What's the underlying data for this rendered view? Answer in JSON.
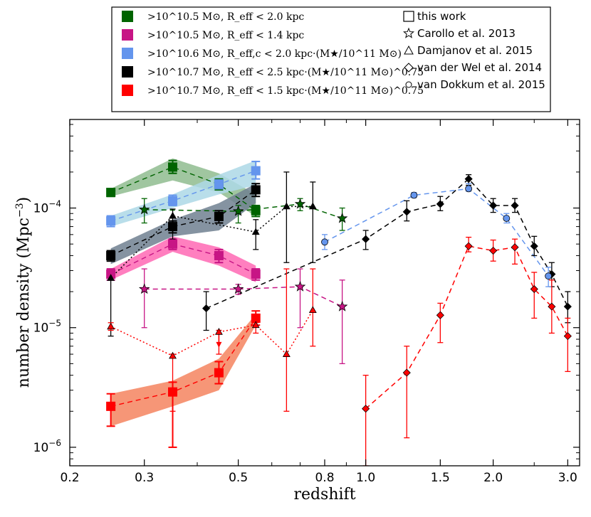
{
  "chart_data": {
    "type": "scatter",
    "xlabel": "redshift",
    "ylabel": "number density (Mpc⁻³)",
    "xscale": "log",
    "yscale": "log",
    "xlim": [
      0.2,
      3.2
    ],
    "ylim": [
      7e-07,
      0.00055
    ],
    "xticks": [
      0.2,
      0.3,
      0.5,
      0.8,
      1.0,
      1.5,
      2.0,
      3.0
    ],
    "xtick_labels": [
      "0.2",
      "0.3",
      "0.5",
      "0.8",
      "1.0",
      "1.5",
      "2.0",
      "3.0"
    ],
    "yticks": [
      1e-06,
      1e-05,
      0.0001
    ],
    "ytick_labels": [
      {
        "base": "10",
        "exp": "−6"
      },
      {
        "base": "10",
        "exp": "−5"
      },
      {
        "base": "10",
        "exp": "−4"
      }
    ],
    "colors": {
      "green": "#006400",
      "magenta": "#c71585",
      "blue": "#6495ed",
      "black": "#000000",
      "red": "#ff0000",
      "green_band": "#8fbc8f",
      "magenta_band": "#ff69b4",
      "blue_band": "#add8e6",
      "black_band": "#708090",
      "red_band": "#f4845f"
    },
    "legend_colors": [
      {
        "color": "#006400",
        "text": ">10^10.5 M⊙, R_eff < 2.0 kpc"
      },
      {
        "color": "#c71585",
        "text": ">10^10.5 M⊙, R_eff < 1.4 kpc"
      },
      {
        "color": "#6495ed",
        "text": ">10^10.6 M⊙, R_eff,c < 2.0 kpc·(M★/10^11 M⊙)"
      },
      {
        "color": "#000000",
        "text": ">10^10.7 M⊙, R_eff < 2.5 kpc·(M★/10^11 M⊙)^0.75"
      },
      {
        "color": "#ff0000",
        "text": ">10^10.7 M⊙, R_eff < 1.5 kpc·(M★/10^11 M⊙)^0.75"
      }
    ],
    "legend_markers": [
      {
        "marker": "square",
        "label": "this work"
      },
      {
        "marker": "star",
        "label": "Carollo et al. 2013"
      },
      {
        "marker": "triangle",
        "label": "Damjanov et al. 2015"
      },
      {
        "marker": "diamond",
        "label": "van der Wel et al. 2014"
      },
      {
        "marker": "circle",
        "label": "van Dokkum et al. 2015"
      }
    ],
    "series": [
      {
        "name": "this work - green",
        "marker": "square",
        "color": "green",
        "band": "green_band",
        "x": [
          0.25,
          0.35,
          0.45,
          0.55
        ],
        "y": [
          0.000135,
          0.00022,
          0.000158,
          9.5e-05
        ],
        "ylo": [
          0.000125,
          0.000195,
          0.000142,
          8.5e-05
        ],
        "yhi": [
          0.000145,
          0.00025,
          0.000175,
          0.000105
        ],
        "band_lo": [
          0.000125,
          0.00017,
          0.000135,
          8.5e-05
        ],
        "band_hi": [
          0.000145,
          0.00026,
          0.000195,
          0.00013
        ]
      },
      {
        "name": "this work - magenta",
        "marker": "square",
        "color": "magenta",
        "band": "magenta_band",
        "x": [
          0.25,
          0.35,
          0.45,
          0.55
        ],
        "y": [
          2.8e-05,
          5e-05,
          4e-05,
          2.8e-05
        ],
        "ylo": [
          2.5e-05,
          4.5e-05,
          3.5e-05,
          2.5e-05
        ],
        "yhi": [
          3.1e-05,
          5.5e-05,
          4.5e-05,
          3.1e-05
        ],
        "band_lo": [
          2.5e-05,
          4.3e-05,
          3.3e-05,
          2.4e-05
        ],
        "band_hi": [
          3.1e-05,
          5.8e-05,
          4.7e-05,
          3.3e-05
        ]
      },
      {
        "name": "this work - blue",
        "marker": "square",
        "color": "blue",
        "band": "blue_band",
        "x": [
          0.25,
          0.35,
          0.45,
          0.55
        ],
        "y": [
          7.8e-05,
          0.000115,
          0.000158,
          0.000205
        ],
        "ylo": [
          7e-05,
          0.000105,
          0.000145,
          0.000175
        ],
        "yhi": [
          8.6e-05,
          0.000128,
          0.000172,
          0.000245
        ],
        "band_lo": [
          7e-05,
          0.0001,
          0.00013,
          0.000155
        ],
        "band_hi": [
          8.6e-05,
          0.00013,
          0.00019,
          0.00025
        ]
      },
      {
        "name": "this work - black",
        "marker": "square",
        "color": "black",
        "band": "black_band",
        "x": [
          0.25,
          0.35,
          0.45,
          0.55
        ],
        "y": [
          4e-05,
          7e-05,
          8.5e-05,
          0.000142
        ],
        "ylo": [
          3.6e-05,
          6.2e-05,
          7.5e-05,
          0.000125
        ],
        "yhi": [
          4.4e-05,
          7.8e-05,
          9.5e-05,
          0.00016
        ],
        "band_lo": [
          3.4e-05,
          5.8e-05,
          6.5e-05,
          0.00011
        ],
        "band_hi": [
          4.6e-05,
          8e-05,
          0.00011,
          0.00016
        ]
      },
      {
        "name": "this work - red",
        "marker": "square",
        "color": "red",
        "band": "red_band",
        "x": [
          0.25,
          0.35,
          0.45,
          0.55
        ],
        "y": [
          2.2e-06,
          2.9e-06,
          4.2e-06,
          1.2e-05
        ],
        "ylo": [
          1.5e-06,
          1e-06,
          3.4e-06,
          1.05e-05
        ],
        "yhi": [
          2.8e-06,
          3.5e-06,
          5.2e-06,
          1.38e-05
        ],
        "band_lo": [
          1.5e-06,
          2.2e-06,
          3e-06,
          1.05e-05
        ],
        "band_hi": [
          2.8e-06,
          3.6e-06,
          5.5e-06,
          1.3e-05
        ]
      },
      {
        "name": "Carollo 2013 - green",
        "marker": "star",
        "color": "green",
        "line": "dashed",
        "x": [
          0.3,
          0.5,
          0.7,
          0.88
        ],
        "y": [
          9.7e-05,
          9.4e-05,
          0.000108,
          8.2e-05
        ],
        "ylo": [
          7.5e-05,
          7.5e-05,
          9.5e-05,
          6.5e-05
        ],
        "yhi": [
          0.00012,
          0.000105,
          0.00012,
          0.0001
        ]
      },
      {
        "name": "Carollo 2013 - magenta",
        "marker": "star",
        "color": "magenta",
        "line": "dashed",
        "x": [
          0.3,
          0.5,
          0.7,
          0.88
        ],
        "y": [
          2.1e-05,
          2.1e-05,
          2.2e-05,
          1.5e-05
        ],
        "ylo": [
          1e-05,
          1.9e-05,
          1e-05,
          5e-06
        ],
        "yhi": [
          3.1e-05,
          2.3e-05,
          3.1e-05,
          2.5e-05
        ]
      },
      {
        "name": "Damjanov 2015 - black",
        "marker": "triangle",
        "color": "black",
        "line": "dotted",
        "x": [
          0.25,
          0.35,
          0.55,
          0.65,
          0.75
        ],
        "y": [
          2.6e-05,
          8.6e-05,
          6.3e-05,
          0.000103,
          0.000103
        ],
        "ylo": [
          8.5e-06,
          5.5e-05,
          4.5e-05,
          3.5e-05,
          3.5e-05
        ],
        "yhi": [
          3e-05,
          9.8e-05,
          8e-05,
          0.0002,
          0.000165
        ]
      },
      {
        "name": "Damjanov 2015 - red",
        "marker": "triangle",
        "color": "red",
        "line": "dotted",
        "x": [
          0.25,
          0.35,
          0.45,
          0.55,
          0.65,
          0.75
        ],
        "y": [
          1.02e-05,
          5.8e-06,
          9.2e-06,
          1.05e-05,
          6e-06,
          1.4e-05
        ],
        "ylo": [
          9.5e-06,
          2e-06,
          6e-06,
          9e-06,
          2e-06,
          7e-06
        ],
        "yhi": [
          1.1e-05,
          6e-06,
          9.5e-06,
          1.1e-05,
          3.1e-05,
          3.1e-05
        ]
      },
      {
        "name": "van der Wel 2014 - black",
        "marker": "diamond",
        "color": "black",
        "line": "dashed",
        "x": [
          0.42,
          1.0,
          1.25,
          1.5,
          1.75,
          2.0,
          2.25,
          2.5,
          2.75,
          3.0
        ],
        "y": [
          1.45e-05,
          5.5e-05,
          9.3e-05,
          0.000108,
          0.000175,
          0.000105,
          0.000105,
          4.8e-05,
          2.8e-05,
          1.5e-05
        ],
        "ylo": [
          9.5e-06,
          4.5e-05,
          7.8e-05,
          9.5e-05,
          0.000155,
          9.2e-05,
          9.2e-05,
          4e-05,
          2.2e-05,
          1.1e-05
        ],
        "yhi": [
          2e-05,
          6.5e-05,
          0.000115,
          0.000125,
          0.00019,
          0.00012,
          0.00012,
          5.8e-05,
          3.5e-05,
          2e-05
        ]
      },
      {
        "name": "van der Wel 2014 - red",
        "marker": "diamond",
        "color": "red",
        "line": "dashed",
        "x": [
          1.0,
          1.25,
          1.5,
          1.75,
          2.0,
          2.25,
          2.5,
          2.75,
          3.0
        ],
        "y": [
          2.1e-06,
          4.2e-06,
          1.27e-05,
          4.8e-05,
          4.4e-05,
          4.7e-05,
          2.1e-05,
          1.5e-05,
          8.5e-06
        ],
        "ylo": [
          7e-07,
          1.2e-06,
          7.5e-06,
          4.3e-05,
          3.6e-05,
          3.4e-05,
          1.2e-05,
          9e-06,
          4.3e-06
        ],
        "yhi": [
          4e-06,
          7e-06,
          1.6e-05,
          5.7e-05,
          5.4e-05,
          5.5e-05,
          2.9e-05,
          2.5e-05,
          1.2e-05
        ]
      },
      {
        "name": "van Dokkum 2015 - blue",
        "marker": "circle",
        "color": "blue",
        "line": "dashed",
        "x": [
          0.8,
          1.3,
          1.75,
          2.15,
          2.7
        ],
        "y": [
          5.2e-05,
          0.000128,
          0.000145,
          8.2e-05,
          2.7e-05
        ],
        "ylo": [
          4.5e-05,
          0.000122,
          0.000138,
          7.5e-05,
          2.2e-05
        ],
        "yhi": [
          6e-05,
          0.000135,
          0.00016,
          9e-05,
          3.2e-05
        ]
      }
    ],
    "upper_limit_arrow": {
      "x": 0.45,
      "y": 9.2e-06,
      "color": "red"
    }
  }
}
